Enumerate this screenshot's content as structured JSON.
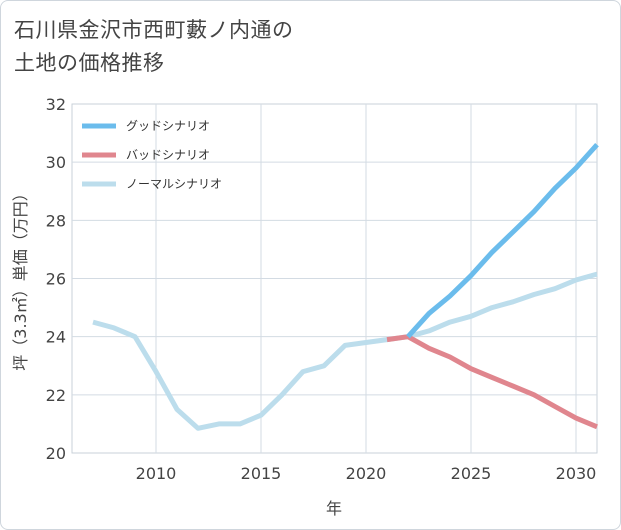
{
  "title": {
    "line1": "石川県金沢市西町藪ノ内通の",
    "line2": "土地の価格推移"
  },
  "chart_data": {
    "type": "line",
    "xlabel": "年",
    "ylabel": "坪（3.3㎡）単価（万円）",
    "xlim": [
      2006,
      2031
    ],
    "ylim": [
      20,
      32
    ],
    "xticks": [
      2010,
      2015,
      2020,
      2025,
      2030
    ],
    "yticks": [
      20,
      22,
      24,
      26,
      28,
      30,
      32
    ],
    "grid": true,
    "legend_position": "top-left",
    "series": [
      {
        "name": "グッドシナリオ",
        "color": "#6bbcec",
        "x": [
          2022,
          2023,
          2024,
          2025,
          2026,
          2027,
          2028,
          2029,
          2030,
          2031
        ],
        "y": [
          24.0,
          24.8,
          25.4,
          26.1,
          26.9,
          27.6,
          28.3,
          29.1,
          29.8,
          30.6
        ]
      },
      {
        "name": "バッドシナリオ",
        "color": "#e0868e",
        "x": [
          2021,
          2022,
          2023,
          2024,
          2025,
          2026,
          2027,
          2028,
          2029,
          2030,
          2031
        ],
        "y": [
          23.9,
          24.0,
          23.6,
          23.3,
          22.9,
          22.6,
          22.3,
          22.0,
          21.6,
          21.2,
          20.9
        ]
      },
      {
        "name": "ノーマルシナリオ",
        "color": "#bcddec",
        "x": [
          2007,
          2008,
          2009,
          2010,
          2011,
          2012,
          2013,
          2014,
          2015,
          2016,
          2017,
          2018,
          2019,
          2020,
          2021,
          2022,
          2023,
          2024,
          2025,
          2026,
          2027,
          2028,
          2029,
          2030,
          2031
        ],
        "y": [
          24.5,
          24.3,
          24.0,
          22.8,
          21.5,
          20.85,
          21.0,
          21.0,
          21.3,
          22.0,
          22.8,
          23.0,
          23.7,
          23.8,
          23.9,
          24.0,
          24.2,
          24.5,
          24.7,
          25.0,
          25.2,
          25.45,
          25.65,
          25.95,
          26.15
        ]
      }
    ]
  }
}
